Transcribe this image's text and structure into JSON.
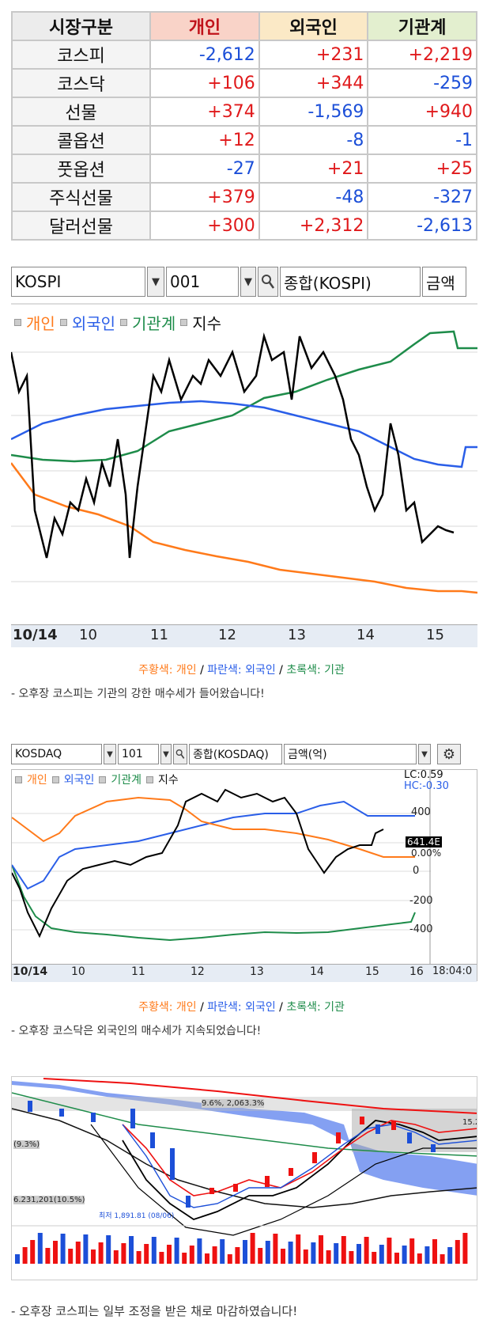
{
  "table": {
    "headers": [
      "시장구분",
      "개인",
      "외국인",
      "기관계"
    ],
    "rows": [
      {
        "market": "코스피",
        "individual": "-2,612",
        "foreign": "+231",
        "institution": "+2,219"
      },
      {
        "market": "코스닥",
        "individual": "+106",
        "foreign": "+344",
        "institution": "-259"
      },
      {
        "market": "선물",
        "individual": "+374",
        "foreign": "-1,569",
        "institution": "+940"
      },
      {
        "market": "콜옵션",
        "individual": "+12",
        "foreign": "-8",
        "institution": "-1"
      },
      {
        "market": "풋옵션",
        "individual": "-27",
        "foreign": "+21",
        "institution": "+25"
      },
      {
        "market": "주식선물",
        "individual": "+379",
        "foreign": "-48",
        "institution": "-327"
      },
      {
        "market": "달러선물",
        "individual": "+300",
        "foreign": "+2,312",
        "institution": "-2,613"
      }
    ]
  },
  "kospi": {
    "market_select": "KOSPI",
    "code": "001",
    "name": "종합(KOSPI)",
    "unit": "금액",
    "legend": [
      "개인",
      "외국인",
      "기관계",
      "지수"
    ],
    "x_labels": [
      "10/14",
      "10",
      "11",
      "12",
      "13",
      "14",
      "15"
    ],
    "caption": {
      "orange": "주황색: 개인",
      "sep1": " / ",
      "blue": "파란색: 외국인",
      "sep2": " / ",
      "green": "초록색: 기관"
    },
    "comment": "- 오후장 코스피는 기관의 강한 매수세가 들어왔습니다!"
  },
  "kosdaq": {
    "market_select": "KOSDAQ",
    "code": "101",
    "name": "종합(KOSDAQ)",
    "unit": "금액(억)",
    "legend": [
      "개인",
      "외국인",
      "기관계",
      "지수"
    ],
    "x_labels": [
      "10/14",
      "10",
      "11",
      "12",
      "13",
      "14",
      "15",
      "16"
    ],
    "time": "18:04:0",
    "y_labels": [
      "400",
      "200",
      "0",
      "-200",
      "-400"
    ],
    "lc": "LC:0.59",
    "hc": "HC:-0.30",
    "price_tag": "641.4E",
    "pct_tag": "0.00%",
    "caption": {
      "orange": "주황색: 개인",
      "sep1": " / ",
      "blue": "파란색: 외국인",
      "sep2": " / ",
      "green": "초록색: 기관"
    },
    "comment": "- 오후장 코스닥은 외국인의 매수세가 지속되었습니다!"
  },
  "candle": {
    "labels": [
      "9.6%, 2,063.3%",
      "6.231,201(10.5%)",
      "(9.3%)",
      "최저 1,891.81 (08/06)",
      "15.2"
    ],
    "comment": "- 오후장 코스피는 일부 조정을 받은 채로 마감하였습니다!"
  },
  "colors": {
    "individual": "#ff7a1a",
    "foreign": "#2a5ee8",
    "institution": "#1e8c4a",
    "index": "#000000",
    "pos": "#e0191b",
    "neg": "#1c4fd8"
  }
}
